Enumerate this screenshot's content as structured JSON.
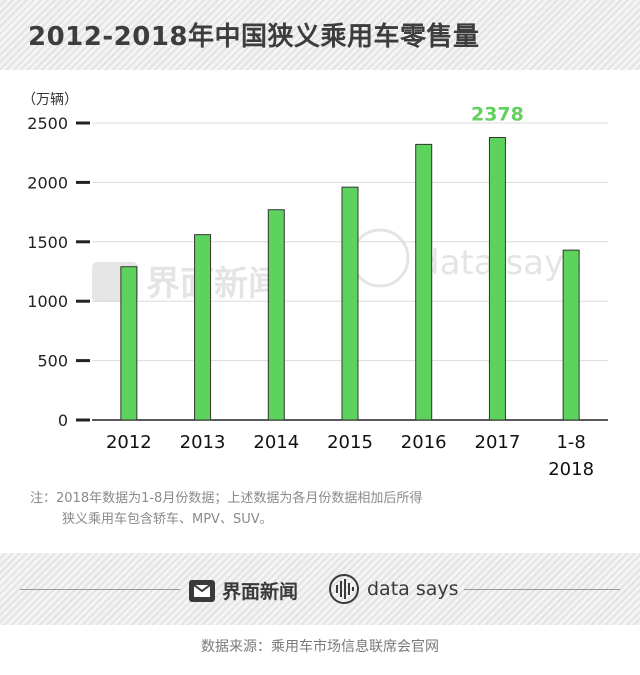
{
  "title": "2012-2018年中国狭义乘用车零售量",
  "note": {
    "line1": "注：2018年数据为1-8月份数据；上述数据为各月份数据相加后所得",
    "line2": "狭义乘用车包含轿车、MPV、SUV。"
  },
  "branding": {
    "brand1": "界面新闻",
    "brand2": "data says",
    "watermark1": "界面新闻",
    "watermark2": "data says"
  },
  "source": "数据来源：乘用车市场信息联席会官网",
  "colors": {
    "bar_fill": "#5dd35d",
    "bar_stroke": "#333333",
    "highlight_label": "#63cf5e",
    "axis": "#222222",
    "grid": "#dcdcdc"
  },
  "chart_data": {
    "type": "bar",
    "unit_label": "（万辆）",
    "categories": [
      {
        "line1": "2012",
        "line2": ""
      },
      {
        "line1": "2013",
        "line2": ""
      },
      {
        "line1": "2014",
        "line2": ""
      },
      {
        "line1": "2015",
        "line2": ""
      },
      {
        "line1": "2016",
        "line2": ""
      },
      {
        "line1": "2017",
        "line2": ""
      },
      {
        "line1": "1-8",
        "line2": "2018"
      }
    ],
    "values": [
      1290,
      1560,
      1770,
      1960,
      2320,
      2378,
      1430
    ],
    "ylim": [
      0,
      2500
    ],
    "yticks": [
      0,
      500,
      1000,
      1500,
      2000,
      2500
    ],
    "grid": true,
    "data_labels": [
      {
        "index": 5,
        "text": "2378"
      }
    ]
  }
}
